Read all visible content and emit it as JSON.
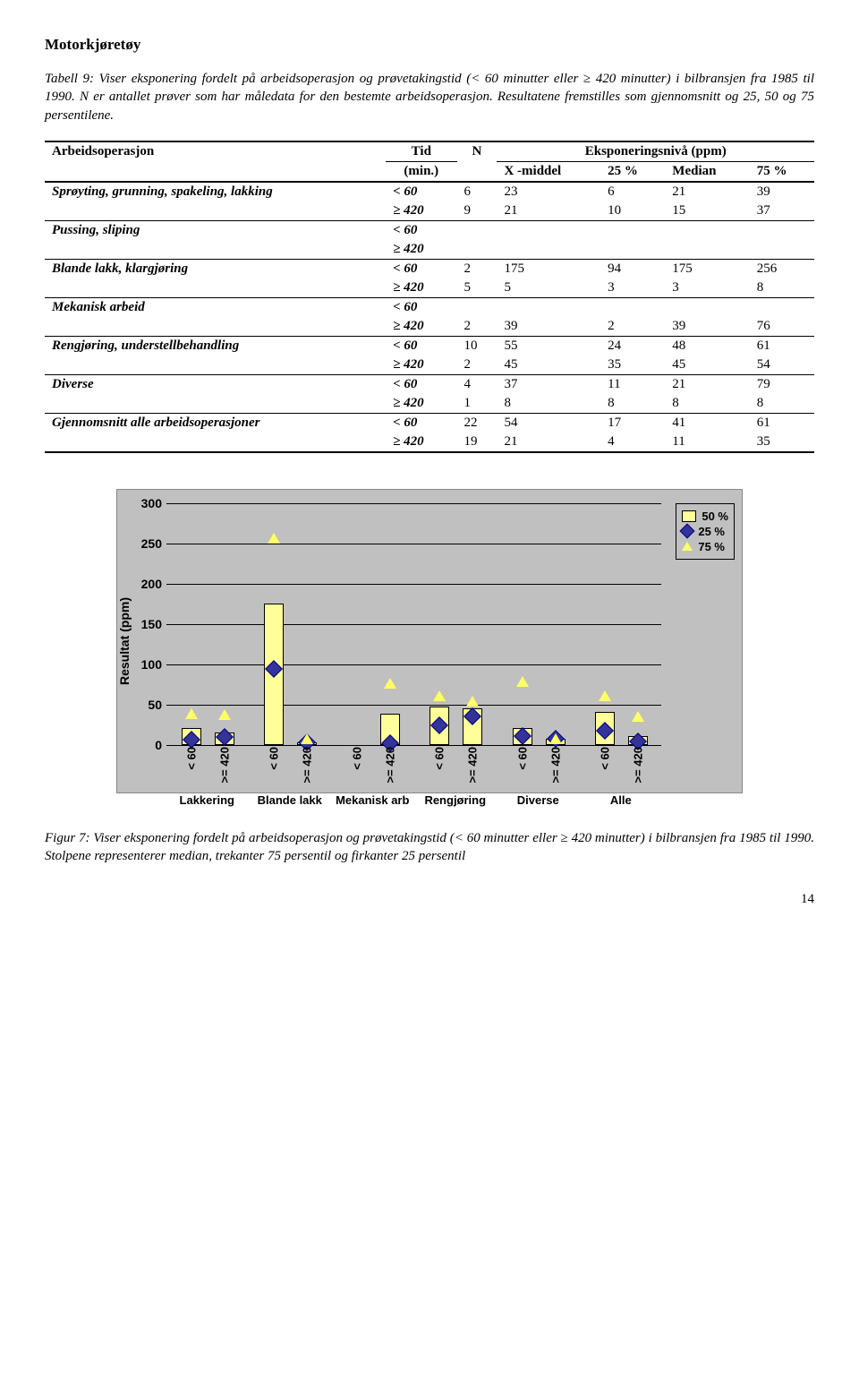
{
  "section_title": "Motorkjøretøy",
  "intro": "Tabell 9: Viser eksponering fordelt på arbeidsoperasjon og prøvetakingstid (< 60 minutter eller ≥ 420 minutter) i bilbransjen fra 1985 til 1990. N er antallet prøver som har måledata for den bestemte arbeidsoperasjon. Resultatene fremstilles som gjennomsnitt og 25, 50 og 75 persentilene.",
  "table": {
    "headers": {
      "col1": "Arbeidsoperasjon",
      "col2a": "Tid",
      "col2b": "(min.)",
      "col3": "N",
      "colgroup": "Eksponeringsnivå (ppm)",
      "sub1": "X -middel",
      "sub2": "25 %",
      "sub3": "Median",
      "sub4": "75 %"
    },
    "rows": [
      {
        "op": "Sprøyting, grunning, spakeling, lakking",
        "sub": [
          {
            "t": "< 60",
            "n": "6",
            "x": "23",
            "p25": "6",
            "med": "21",
            "p75": "39"
          },
          {
            "t": "≥ 420",
            "n": "9",
            "x": "21",
            "p25": "10",
            "med": "15",
            "p75": "37"
          }
        ]
      },
      {
        "op": "Pussing, sliping",
        "sub": [
          {
            "t": "< 60",
            "n": "",
            "x": "",
            "p25": "",
            "med": "",
            "p75": ""
          },
          {
            "t": "≥ 420",
            "n": "",
            "x": "",
            "p25": "",
            "med": "",
            "p75": ""
          }
        ]
      },
      {
        "op": "Blande lakk, klargjøring",
        "sub": [
          {
            "t": "< 60",
            "n": "2",
            "x": "175",
            "p25": "94",
            "med": "175",
            "p75": "256"
          },
          {
            "t": "≥ 420",
            "n": "5",
            "x": "5",
            "p25": "3",
            "med": "3",
            "p75": "8"
          }
        ]
      },
      {
        "op": "Mekanisk arbeid",
        "sub": [
          {
            "t": "< 60",
            "n": "",
            "x": "",
            "p25": "",
            "med": "",
            "p75": ""
          },
          {
            "t": "≥ 420",
            "n": "2",
            "x": "39",
            "p25": "2",
            "med": "39",
            "p75": "76"
          }
        ]
      },
      {
        "op": "Rengjøring, understellbehandling",
        "sub": [
          {
            "t": "< 60",
            "n": "10",
            "x": "55",
            "p25": "24",
            "med": "48",
            "p75": "61"
          },
          {
            "t": "≥ 420",
            "n": "2",
            "x": "45",
            "p25": "35",
            "med": "45",
            "p75": "54"
          }
        ]
      },
      {
        "op": "Diverse",
        "sub": [
          {
            "t": "< 60",
            "n": "4",
            "x": "37",
            "p25": "11",
            "med": "21",
            "p75": "79"
          },
          {
            "t": "≥ 420",
            "n": "1",
            "x": "8",
            "p25": "8",
            "med": "8",
            "p75": "8"
          }
        ]
      },
      {
        "op": "Gjennomsnitt alle arbeidsoperasjoner",
        "sub": [
          {
            "t": "< 60",
            "n": "22",
            "x": "54",
            "p25": "17",
            "med": "41",
            "p75": "61"
          },
          {
            "t": "≥ 420",
            "n": "19",
            "x": "21",
            "p25": "4",
            "med": "11",
            "p75": "35"
          }
        ]
      }
    ]
  },
  "chart": {
    "type": "bar",
    "ylabel": "Resultat (ppm)",
    "ylim": [
      0,
      300
    ],
    "ytick_step": 50,
    "background_color": "#c0c0c0",
    "bar_fill": "#ffff99",
    "bar_border": "#000000",
    "diamond_fill": "#333399",
    "triangle_fill": "#ffff66",
    "triangle_border": "#008080",
    "categories": [
      "Lakkering",
      "Blande lakk",
      "Mekanisk arb",
      "Rengjøring",
      "Diverse",
      "Alle"
    ],
    "sub_labels": [
      "< 60",
      ">= 420"
    ],
    "series": [
      {
        "cat": "Lakkering",
        "subs": [
          {
            "label": "< 60",
            "median": 21,
            "p25": 6,
            "p75": 39
          },
          {
            "label": ">= 420",
            "median": 15,
            "p25": 10,
            "p75": 37
          }
        ]
      },
      {
        "cat": "Blande lakk",
        "subs": [
          {
            "label": "< 60",
            "median": 175,
            "p25": 94,
            "p75": 256
          },
          {
            "label": ">= 420",
            "median": 3,
            "p25": 3,
            "p75": 8
          }
        ]
      },
      {
        "cat": "Mekanisk arb",
        "subs": [
          {
            "label": "< 60",
            "median": null,
            "p25": null,
            "p75": null
          },
          {
            "label": ">= 420",
            "median": 39,
            "p25": 2,
            "p75": 76
          }
        ]
      },
      {
        "cat": "Rengjøring",
        "subs": [
          {
            "label": "< 60",
            "median": 48,
            "p25": 24,
            "p75": 61
          },
          {
            "label": ">= 420",
            "median": 45,
            "p25": 35,
            "p75": 54
          }
        ]
      },
      {
        "cat": "Diverse",
        "subs": [
          {
            "label": "< 60",
            "median": 21,
            "p25": 11,
            "p75": 79
          },
          {
            "label": ">= 420",
            "median": 8,
            "p25": 8,
            "p75": 8
          }
        ]
      },
      {
        "cat": "Alle",
        "subs": [
          {
            "label": "< 60",
            "median": 41,
            "p25": 17,
            "p75": 61
          },
          {
            "label": ">= 420",
            "median": 11,
            "p25": 4,
            "p75": 35
          }
        ]
      }
    ],
    "legend": {
      "l50": "50 %",
      "l25": "25 %",
      "l75": "75 %"
    }
  },
  "caption": "Figur 7: Viser eksponering fordelt på arbeidsoperasjon og prøvetakingstid (< 60 minutter eller ≥ 420 minutter) i bilbransjen fra 1985 til 1990. Stolpene representerer median, trekanter 75 persentil og firkanter 25 persentil",
  "pagenum": "14"
}
